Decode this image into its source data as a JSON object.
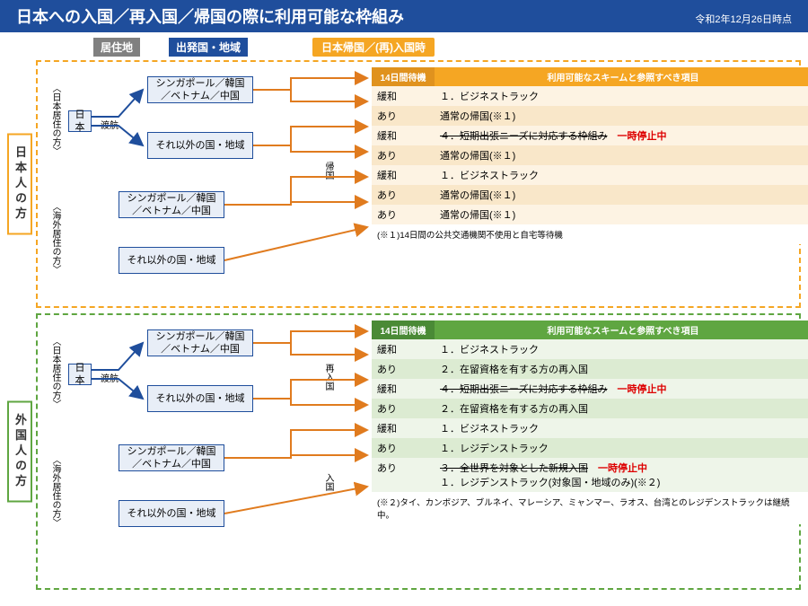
{
  "header": {
    "title": "日本への入国／再入国／帰国の際に利用可能な枠組み",
    "date": "令和2年12月26日時点"
  },
  "column_headers": {
    "residence": "居住地",
    "departure": "出発国・地域",
    "arrival": "日本帰国／(再)入国時"
  },
  "labels": {
    "japan": "日本",
    "travel": "渡航",
    "return": "帰国",
    "reentry": "再入国",
    "entry": "入国",
    "japan_resident": "〈日本居住の方〉",
    "overseas_resident": "〈海外居住の方〉"
  },
  "countries": {
    "group1": "シンガポール／韓国／ベトナム／中国",
    "group2": "それ以外の国・地域"
  },
  "sections": {
    "japanese": {
      "title": "日本人の方",
      "border_color": "#f5a623",
      "table_header_color": "#f5a623",
      "table": {
        "col1": "14日間待機",
        "col2": "利用可能なスキームと参照すべき項目",
        "rows": [
          {
            "c1": "緩和",
            "c2": "１．ビジネストラック",
            "alt": "a"
          },
          {
            "c1": "あり",
            "c2": "通常の帰国(※１)",
            "alt": "b"
          },
          {
            "c1": "緩和",
            "c2": "<span class='strike'>４．短期出張ニーズに対応する枠組み</span>　<span class='red'>一時停止中</span>",
            "alt": "a"
          },
          {
            "c1": "あり",
            "c2": "通常の帰国(※１)",
            "alt": "b"
          },
          {
            "c1": "緩和",
            "c2": "１．ビジネストラック",
            "alt": "a"
          },
          {
            "c1": "あり",
            "c2": "通常の帰国(※１)",
            "alt": "b"
          },
          {
            "c1": "あり",
            "c2": "通常の帰国(※１)",
            "alt": "a"
          }
        ],
        "note": "(※１)14日間の公共交通機関不使用と自宅等待機"
      }
    },
    "foreigner": {
      "title": "外国人の方",
      "border_color": "#5fa641",
      "table_header_color": "#5fa641",
      "table": {
        "col1": "14日間待機",
        "col2": "利用可能なスキームと参照すべき項目",
        "rows": [
          {
            "c1": "緩和",
            "c2": "１．ビジネストラック",
            "alt": "a"
          },
          {
            "c1": "あり",
            "c2": "２．在留資格を有する方の再入国",
            "alt": "b"
          },
          {
            "c1": "緩和",
            "c2": "<span class='strike'>４．短期出張ニーズに対応する枠組み</span>　<span class='red'>一時停止中</span>",
            "alt": "a"
          },
          {
            "c1": "あり",
            "c2": "２．在留資格を有する方の再入国",
            "alt": "b"
          },
          {
            "c1": "緩和",
            "c2": "１．ビジネストラック",
            "alt": "a"
          },
          {
            "c1": "あり",
            "c2": "１．レジデンストラック",
            "alt": "b"
          },
          {
            "c1": "あり",
            "c2": "<span class='strike'>３．全世界を対象とした新規入国</span>　<span class='red'>一時停止中</span><br>１．レジデンストラック(対象国・地域のみ)(※２)",
            "alt": "a"
          }
        ],
        "note": "(※２)タイ、カンボジア、ブルネイ、マレーシア、ミャンマー、ラオス、台湾とのレジデンストラックは継続中。"
      }
    }
  },
  "colors": {
    "header_bg": "#1f4e9c",
    "box_border": "#1f4e9c",
    "box_fill": "#e8eef7",
    "arrow_orange": "#e07b1e",
    "arrow_blue": "#1f4e9c"
  }
}
